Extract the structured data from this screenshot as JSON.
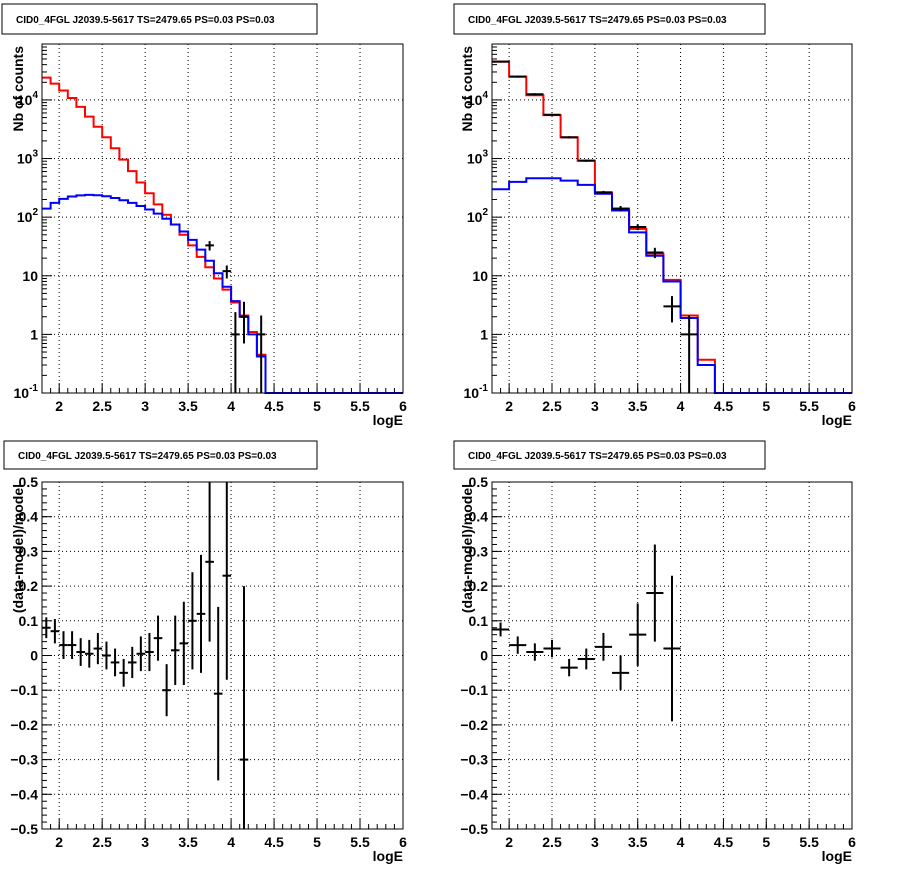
{
  "chart_data": [
    {
      "type": "line",
      "title": "CID0_4FGL J2039.5-5617 TS=2479.65 PS=0.03 PS=0.03",
      "xlabel": "logE",
      "ylabel": "Nb of counts",
      "yscale": "log",
      "xlim": [
        1.8,
        6
      ],
      "ylim": [
        0.1,
        90000
      ],
      "grid": true,
      "xticks": [
        "2",
        "2.5",
        "3",
        "3.5",
        "4",
        "4.5",
        "5",
        "5.5",
        "6"
      ],
      "yticks": [
        "10^-1",
        "1",
        "10",
        "10^2",
        "10^3",
        "10^4"
      ],
      "bin_edges": [
        1.8,
        1.9,
        2.0,
        2.1,
        2.2,
        2.3,
        2.4,
        2.5,
        2.6,
        2.7,
        2.8,
        2.9,
        3.0,
        3.1,
        3.2,
        3.3,
        3.4,
        3.5,
        3.6,
        3.7,
        3.8,
        3.9,
        4.0,
        4.1,
        4.2,
        4.3,
        4.4,
        4.5,
        4.6,
        4.7,
        4.8,
        4.9,
        5.0,
        5.1,
        5.2,
        5.3,
        5.4,
        5.5,
        5.6,
        5.7,
        5.8,
        5.9,
        6.0
      ],
      "series": [
        {
          "color": "#ff0000",
          "values": [
            24000,
            19000,
            14500,
            10800,
            7600,
            5200,
            3500,
            2300,
            1500,
            960,
            610,
            390,
            255,
            165,
            110,
            75,
            50,
            33,
            21,
            14,
            9,
            5.8,
            3.5,
            2.1,
            1.1,
            0.45,
            0.1,
            0.1,
            0.1,
            0.1,
            0.1,
            0.1,
            0.1,
            0.1,
            0.1,
            0.1,
            0.1,
            0.1,
            0.1,
            0.1,
            0.1,
            0.1
          ]
        },
        {
          "color": "#0000ff",
          "values": [
            140,
            175,
            205,
            225,
            235,
            240,
            237,
            228,
            212,
            195,
            175,
            155,
            135,
            115,
            94,
            75,
            57,
            41,
            28,
            18,
            11,
            6.5,
            3.7,
            2.0,
            1.0,
            0.42,
            0.1,
            0.1,
            0.1,
            0.1,
            0.1,
            0.1,
            0.1,
            0.1,
            0.1,
            0.1,
            0.1,
            0.1,
            0.1,
            0.1,
            0.1,
            0.1
          ]
        }
      ],
      "data_points": [
        {
          "x": 3.75,
          "y": 33,
          "ylo": 27,
          "yhi": 39
        },
        {
          "x": 3.95,
          "y": 12,
          "ylo": 9,
          "yhi": 15
        },
        {
          "x": 4.05,
          "y": 1,
          "ylo": 0.1,
          "yhi": 2.4
        },
        {
          "x": 4.15,
          "y": 2,
          "ylo": 0.7,
          "yhi": 3.6
        },
        {
          "x": 4.35,
          "y": 1,
          "ylo": 0.1,
          "yhi": 2.1
        }
      ]
    },
    {
      "type": "line",
      "title": "CID0_4FGL J2039.5-5617 TS=2479.65 PS=0.03 PS=0.03",
      "xlabel": "logE",
      "ylabel": "Nb of counts",
      "yscale": "log",
      "xlim": [
        1.8,
        6
      ],
      "ylim": [
        0.1,
        90000
      ],
      "grid": true,
      "xticks": [
        "2",
        "2.5",
        "3",
        "3.5",
        "4",
        "4.5",
        "5",
        "5.5",
        "6"
      ],
      "yticks": [
        "10^-1",
        "1",
        "10",
        "10^2",
        "10^3",
        "10^4"
      ],
      "bin_edges": [
        1.8,
        2.0,
        2.2,
        2.4,
        2.6,
        2.8,
        3.0,
        3.2,
        3.4,
        3.6,
        3.8,
        4.0,
        4.2,
        4.4,
        4.6,
        4.8,
        5.0,
        5.2,
        5.4,
        5.6,
        5.8,
        6.0
      ],
      "series": [
        {
          "color": "#ff0000",
          "values": [
            45000,
            25000,
            12000,
            5500,
            2300,
            920,
            265,
            140,
            63,
            24,
            8.5,
            2.1,
            0.37,
            0.1,
            0.1,
            0.1,
            0.1,
            0.1,
            0.1,
            0.1,
            0.1
          ]
        },
        {
          "color": "#0000ff",
          "values": [
            300,
            400,
            460,
            460,
            420,
            355,
            250,
            130,
            55,
            22,
            8,
            1.9,
            0.3,
            0.1,
            0.1,
            0.1,
            0.1,
            0.1,
            0.1,
            0.1,
            0.1
          ]
        }
      ],
      "data_points": [
        {
          "x": 1.9,
          "y": 45000,
          "ylo": 44000,
          "yhi": 46000
        },
        {
          "x": 2.1,
          "y": 25000,
          "ylo": 24000,
          "yhi": 26000
        },
        {
          "x": 2.3,
          "y": 12500,
          "ylo": 12000,
          "yhi": 13000
        },
        {
          "x": 2.5,
          "y": 5600,
          "ylo": 5400,
          "yhi": 5800
        },
        {
          "x": 2.7,
          "y": 2300,
          "ylo": 2200,
          "yhi": 2400
        },
        {
          "x": 2.9,
          "y": 920,
          "ylo": 880,
          "yhi": 960
        },
        {
          "x": 3.1,
          "y": 265,
          "ylo": 250,
          "yhi": 280
        },
        {
          "x": 3.3,
          "y": 140,
          "ylo": 125,
          "yhi": 155
        },
        {
          "x": 3.5,
          "y": 68,
          "ylo": 60,
          "yhi": 76
        },
        {
          "x": 3.7,
          "y": 25,
          "ylo": 20,
          "yhi": 30
        },
        {
          "x": 3.9,
          "y": 3,
          "ylo": 1.6,
          "yhi": 4.5
        },
        {
          "x": 4.1,
          "y": 1,
          "ylo": 0.1,
          "yhi": 2.1
        }
      ]
    },
    {
      "type": "scatter",
      "title": "CID0_4FGL J2039.5-5617 TS=2479.65 PS=0.03 PS=0.03",
      "xlabel": "logE",
      "ylabel": "(data-model)/model",
      "xlim": [
        1.8,
        6
      ],
      "ylim": [
        -0.5,
        0.5
      ],
      "grid": true,
      "xticks": [
        "2",
        "2.5",
        "3",
        "3.5",
        "4",
        "4.5",
        "5",
        "5.5",
        "6"
      ],
      "yticks": [
        "-0.5",
        "-0.4",
        "-0.3",
        "-0.2",
        "-0.1",
        "0",
        "0.1",
        "0.2",
        "0.3",
        "0.4",
        "0.5"
      ],
      "points": [
        {
          "x": 1.85,
          "y": 0.08,
          "xerr": 0.05,
          "yerr": 0.03
        },
        {
          "x": 1.95,
          "y": 0.07,
          "xerr": 0.05,
          "yerr": 0.035
        },
        {
          "x": 2.05,
          "y": 0.03,
          "xerr": 0.05,
          "yerr": 0.04
        },
        {
          "x": 2.15,
          "y": 0.03,
          "xerr": 0.05,
          "yerr": 0.04
        },
        {
          "x": 2.25,
          "y": 0.01,
          "xerr": 0.05,
          "yerr": 0.04
        },
        {
          "x": 2.35,
          "y": 0.005,
          "xerr": 0.05,
          "yerr": 0.04
        },
        {
          "x": 2.45,
          "y": 0.02,
          "xerr": 0.05,
          "yerr": 0.045
        },
        {
          "x": 2.55,
          "y": 0.0,
          "xerr": 0.05,
          "yerr": 0.04
        },
        {
          "x": 2.65,
          "y": -0.02,
          "xerr": 0.05,
          "yerr": 0.04
        },
        {
          "x": 2.75,
          "y": -0.05,
          "xerr": 0.05,
          "yerr": 0.04
        },
        {
          "x": 2.85,
          "y": -0.02,
          "xerr": 0.05,
          "yerr": 0.045
        },
        {
          "x": 2.95,
          "y": 0.005,
          "xerr": 0.05,
          "yerr": 0.05
        },
        {
          "x": 3.05,
          "y": 0.01,
          "xerr": 0.05,
          "yerr": 0.055
        },
        {
          "x": 3.15,
          "y": 0.05,
          "xerr": 0.05,
          "yerr": 0.065
        },
        {
          "x": 3.25,
          "y": -0.1,
          "xerr": 0.05,
          "yerr": 0.075
        },
        {
          "x": 3.35,
          "y": 0.015,
          "xerr": 0.05,
          "yerr": 0.1
        },
        {
          "x": 3.45,
          "y": 0.035,
          "xerr": 0.05,
          "yerr": 0.12
        },
        {
          "x": 3.55,
          "y": 0.1,
          "xerr": 0.05,
          "yerr": 0.14
        },
        {
          "x": 3.65,
          "y": 0.12,
          "xerr": 0.05,
          "yerr": 0.17
        },
        {
          "x": 3.75,
          "y": 0.27,
          "xerr": 0.05,
          "yerr": 0.23
        },
        {
          "x": 3.85,
          "y": -0.11,
          "xerr": 0.05,
          "yerr": 0.25
        },
        {
          "x": 3.95,
          "y": 0.23,
          "xerr": 0.05,
          "yerr": 0.3
        },
        {
          "x": 4.15,
          "y": -0.3,
          "xerr": 0.05,
          "yerr": 0.5
        }
      ]
    },
    {
      "type": "scatter",
      "title": "CID0_4FGL J2039.5-5617 TS=2479.65 PS=0.03 PS=0.03",
      "xlabel": "logE",
      "ylabel": "(data-model)/model",
      "xlim": [
        1.8,
        6
      ],
      "ylim": [
        -0.5,
        0.5
      ],
      "grid": true,
      "xticks": [
        "2",
        "2.5",
        "3",
        "3.5",
        "4",
        "4.5",
        "5",
        "5.5",
        "6"
      ],
      "yticks": [
        "-0.5",
        "-0.4",
        "-0.3",
        "-0.2",
        "-0.1",
        "0",
        "0.1",
        "0.2",
        "0.3",
        "0.4",
        "0.5"
      ],
      "points": [
        {
          "x": 1.9,
          "y": 0.075,
          "xerr": 0.1,
          "yerr": 0.02
        },
        {
          "x": 2.1,
          "y": 0.03,
          "xerr": 0.1,
          "yerr": 0.025
        },
        {
          "x": 2.3,
          "y": 0.01,
          "xerr": 0.1,
          "yerr": 0.025
        },
        {
          "x": 2.5,
          "y": 0.02,
          "xerr": 0.1,
          "yerr": 0.025
        },
        {
          "x": 2.7,
          "y": -0.035,
          "xerr": 0.1,
          "yerr": 0.025
        },
        {
          "x": 2.9,
          "y": -0.01,
          "xerr": 0.1,
          "yerr": 0.03
        },
        {
          "x": 3.1,
          "y": 0.025,
          "xerr": 0.1,
          "yerr": 0.04
        },
        {
          "x": 3.3,
          "y": -0.05,
          "xerr": 0.1,
          "yerr": 0.05
        },
        {
          "x": 3.5,
          "y": 0.06,
          "xerr": 0.1,
          "yerr": 0.09
        },
        {
          "x": 3.7,
          "y": 0.18,
          "xerr": 0.1,
          "yerr": 0.14
        },
        {
          "x": 3.9,
          "y": 0.02,
          "xerr": 0.1,
          "yerr": 0.21
        }
      ]
    }
  ]
}
